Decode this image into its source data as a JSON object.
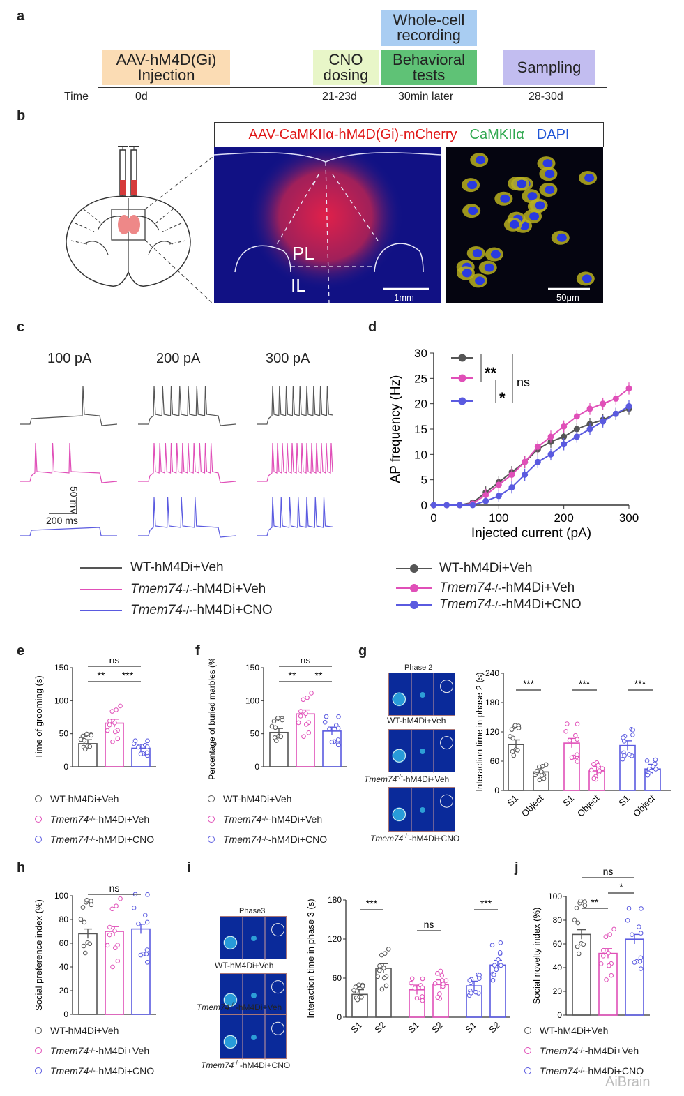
{
  "panels": {
    "a": "a",
    "b": "b",
    "c": "c",
    "d": "d",
    "e": "e",
    "f": "f",
    "g": "g",
    "h": "h",
    "i": "i",
    "j": "j"
  },
  "timeline": {
    "time_label": "Time",
    "boxes": {
      "injection": "AAV-hM4D(Gi) Injection",
      "cno": "CNO dosing",
      "behavior": "Behavioral tests",
      "wholecell": "Whole-cell recording",
      "sampling": "Sampling"
    },
    "ticks": {
      "t0": "0d",
      "t1": "21-23d",
      "t2": "30min later",
      "t3": "28-30d"
    },
    "colors": {
      "injection": "#fbdcb4",
      "cno": "#e8f6c8",
      "behavior": "#5fc276",
      "wholecell": "#a9cdf2",
      "sampling": "#c2bdf0"
    }
  },
  "histology": {
    "title_red": "AAV-CaMKIIα-hM4D(Gi)-mCherry",
    "title_green": "CaMKIIα",
    "title_blue": "DAPI",
    "region_pl": "PL",
    "region_il": "IL",
    "scale_left": "1mm",
    "scale_right": "50μm"
  },
  "traces": {
    "currents": [
      "100 pA",
      "200 pA",
      "300 pA"
    ],
    "scale_v": "50 mV",
    "scale_t": "200 ms"
  },
  "groups": {
    "wt": "WT-hM4Di+Veh",
    "ko_prefix": "Tmem74",
    "ko_sup": "-/-",
    "ko_veh_suffix": "-hM4Di+Veh",
    "ko_cno_suffix": "-hM4Di+CNO",
    "colors": {
      "wt": "#555555",
      "ko_veh": "#e04fb8",
      "ko_cno": "#5a5ae0"
    }
  },
  "chart_data": [
    {
      "panel": "d",
      "type": "line",
      "xlabel": "Injected current (pA)",
      "ylabel": "AP frequency (Hz)",
      "xlim": [
        0,
        300
      ],
      "ylim": [
        0,
        30
      ],
      "xticks": [
        "0",
        "100",
        "200",
        "300"
      ],
      "yticks": [
        "0",
        "5",
        "10",
        "15",
        "20",
        "25",
        "30"
      ],
      "x": [
        0,
        20,
        40,
        60,
        80,
        100,
        120,
        140,
        160,
        180,
        200,
        220,
        240,
        260,
        280,
        300
      ],
      "series": [
        {
          "name": "WT-hM4Di+Veh",
          "values": [
            0,
            0,
            0,
            0.5,
            2.5,
            4.5,
            6.5,
            8.5,
            11,
            12.5,
            13.5,
            15,
            16,
            16.8,
            18,
            19
          ]
        },
        {
          "name": "Tmem74-/--hM4Di+Veh",
          "values": [
            0,
            0,
            0,
            0.3,
            2,
            4,
            6,
            8.5,
            11.5,
            13.5,
            15.5,
            17.5,
            19,
            20,
            21,
            23
          ]
        },
        {
          "name": "Tmem74-/--hM4Di+CNO",
          "values": [
            0,
            0,
            0,
            0,
            0.8,
            1.8,
            3.5,
            6,
            8.5,
            10,
            12,
            13.5,
            15,
            16.5,
            18,
            19.5
          ]
        }
      ],
      "stats": [
        "**",
        "*",
        "ns"
      ]
    },
    {
      "panel": "e",
      "type": "bar",
      "ylabel": "Time of grooming (s)",
      "ylim": [
        0,
        150
      ],
      "yticks": [
        "0",
        "50",
        "100",
        "150"
      ],
      "categories": [
        "WT-hM4Di+Veh",
        "Tmem74-/--hM4Di+Veh",
        "Tmem74-/--hM4Di+CNO"
      ],
      "values": [
        35,
        66,
        28
      ],
      "stats": [
        "**",
        "***",
        "ns"
      ]
    },
    {
      "panel": "f",
      "type": "bar",
      "ylabel": "Percentage of buried marbles (%)",
      "ylim": [
        0,
        150
      ],
      "yticks": [
        "0",
        "50",
        "100",
        "150"
      ],
      "categories": [
        "WT-hM4Di+Veh",
        "Tmem74-/--hM4Di+Veh",
        "Tmem74-/--hM4Di+CNO"
      ],
      "values": [
        52,
        80,
        54
      ],
      "stats": [
        "**",
        "**",
        "ns"
      ]
    },
    {
      "panel": "g",
      "type": "bar",
      "ylabel": "Interaction time in phase 2 (s)",
      "ylim": [
        0,
        240
      ],
      "yticks": [
        "0",
        "60",
        "120",
        "180",
        "240"
      ],
      "categories": [
        "S1",
        "Object",
        "S1",
        "Object",
        "S1",
        "Object"
      ],
      "values": [
        94,
        38,
        97,
        40,
        92,
        44
      ],
      "stats": [
        "***",
        "***",
        "***"
      ]
    },
    {
      "panel": "h",
      "type": "bar",
      "ylabel": "Social preference index (%)",
      "ylim": [
        0,
        100
      ],
      "yticks": [
        "0",
        "20",
        "40",
        "60",
        "80",
        "100"
      ],
      "categories": [
        "WT-hM4Di+Veh",
        "Tmem74-/--hM4Di+Veh",
        "Tmem74-/--hM4Di+CNO"
      ],
      "values": [
        68,
        70,
        72
      ],
      "stats": [
        "ns"
      ]
    },
    {
      "panel": "i",
      "type": "bar",
      "ylabel": "Interaction time in phase 3 (s)",
      "ylim": [
        0,
        180
      ],
      "yticks": [
        "0",
        "60",
        "120",
        "180"
      ],
      "categories": [
        "S1",
        "S2",
        "S1",
        "S2",
        "S1",
        "S2"
      ],
      "values": [
        35,
        75,
        42,
        50,
        48,
        80
      ],
      "stats": [
        "***",
        "ns",
        "***"
      ]
    },
    {
      "panel": "j",
      "type": "bar",
      "ylabel": "Social novelty index (%)",
      "ylim": [
        0,
        100
      ],
      "yticks": [
        "0",
        "20",
        "40",
        "60",
        "80",
        "100"
      ],
      "categories": [
        "WT-hM4Di+Veh",
        "Tmem74-/--hM4Di+Veh",
        "Tmem74-/--hM4Di+CNO"
      ],
      "values": [
        68,
        52,
        64
      ],
      "stats": [
        "**",
        "*",
        "ns"
      ]
    }
  ],
  "arenas": {
    "phase2": "Phase 2",
    "phase3": "Phase3"
  },
  "watermark": "AiBrain"
}
